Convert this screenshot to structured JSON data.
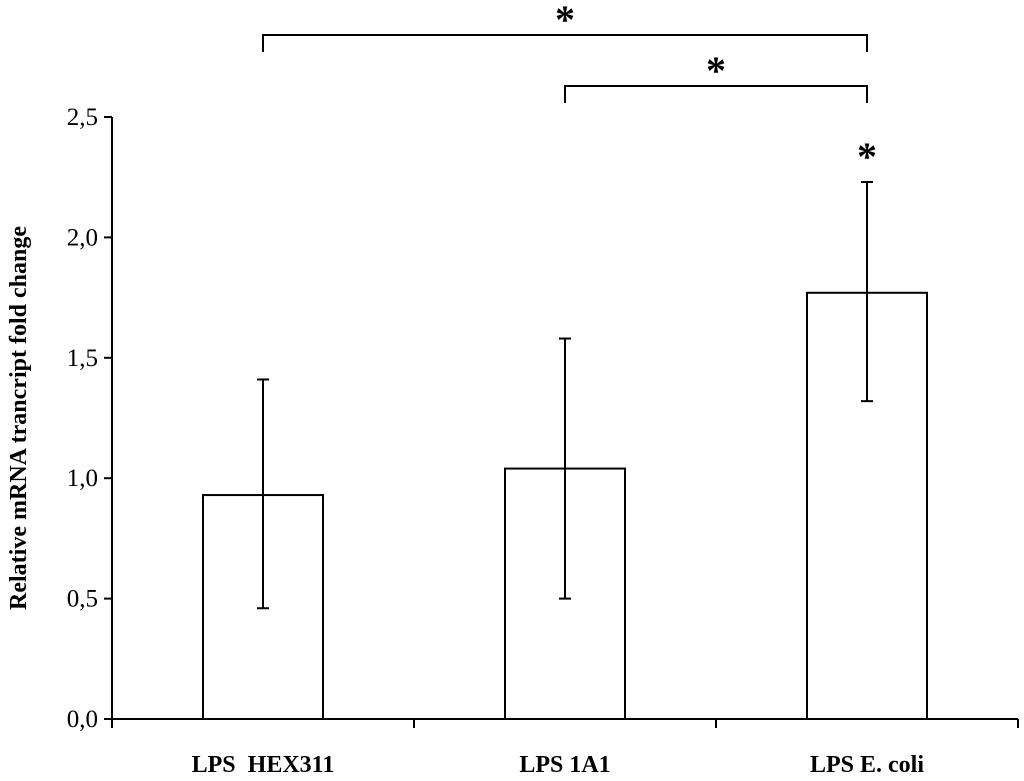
{
  "chart_data": {
    "type": "bar",
    "title": "",
    "xlabel": "",
    "ylabel": "Relative mRNA trancript fold change",
    "ylim": [
      0,
      2.5
    ],
    "yticks": [
      "0,0",
      "0,5",
      "1,0",
      "1,5",
      "2,0",
      "2,5"
    ],
    "ytick_values": [
      0,
      0.5,
      1.0,
      1.5,
      2.0,
      2.5
    ],
    "categories": [
      "LPS  HEX311",
      "LPS 1A1",
      "LPS E. coli"
    ],
    "values": [
      0.93,
      1.04,
      1.77
    ],
    "error_low": [
      0.46,
      0.5,
      1.32
    ],
    "error_high": [
      1.41,
      1.58,
      2.23
    ],
    "bar_annotations": [
      {
        "category_index": 2,
        "text": "*"
      }
    ],
    "significance_brackets": [
      {
        "from_index": 0,
        "to_index": 2,
        "text": "*"
      },
      {
        "from_index": 1,
        "to_index": 2,
        "text": "*"
      }
    ],
    "grid": false,
    "bar_fill": "#ffffff",
    "bar_stroke": "#000000"
  }
}
